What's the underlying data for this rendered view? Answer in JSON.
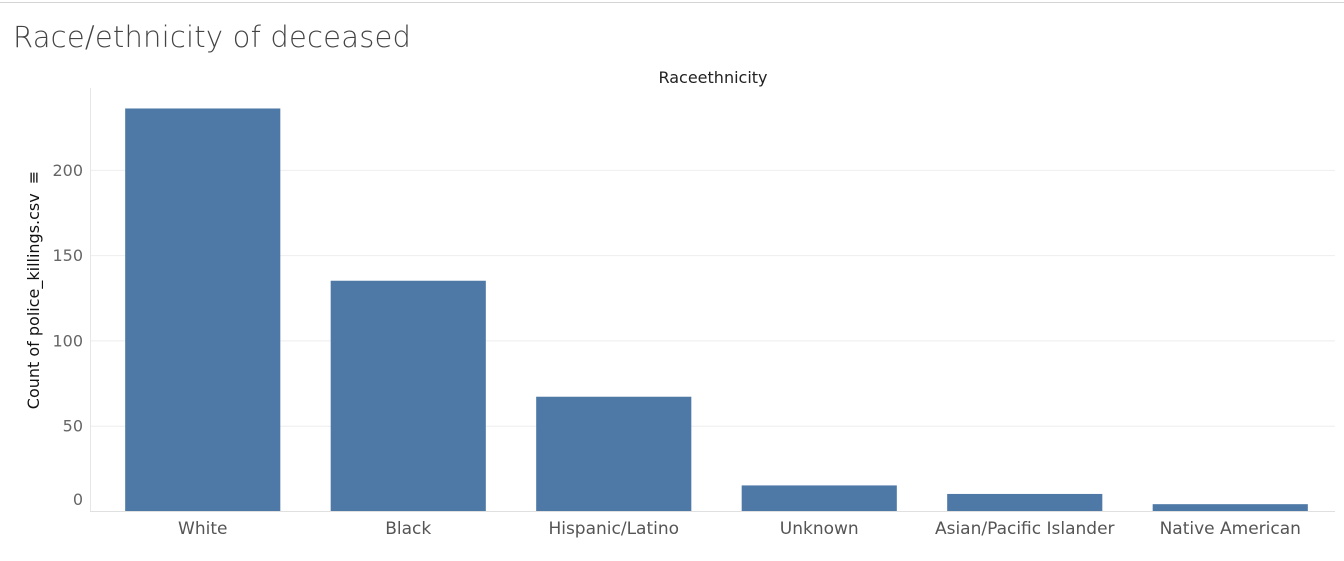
{
  "page": {
    "title": "Race/ethnicity of deceased"
  },
  "chart_data": {
    "type": "bar",
    "title": "Race/ethnicity of deceased",
    "xlabel": "Raceethnicity",
    "ylabel": "Count of police_killings.csv",
    "ylabel_marker": "≡",
    "categories": [
      "White",
      "Black",
      "Hispanic/Latino",
      "Unknown",
      "Asian/Pacific Islander",
      "Native American"
    ],
    "values": [
      236,
      135,
      67,
      15,
      10,
      4
    ],
    "ylim": [
      0,
      248
    ],
    "yticks": [
      0,
      50,
      100,
      150,
      200
    ],
    "gridlines": true,
    "bar_color": "#4e79a7"
  }
}
